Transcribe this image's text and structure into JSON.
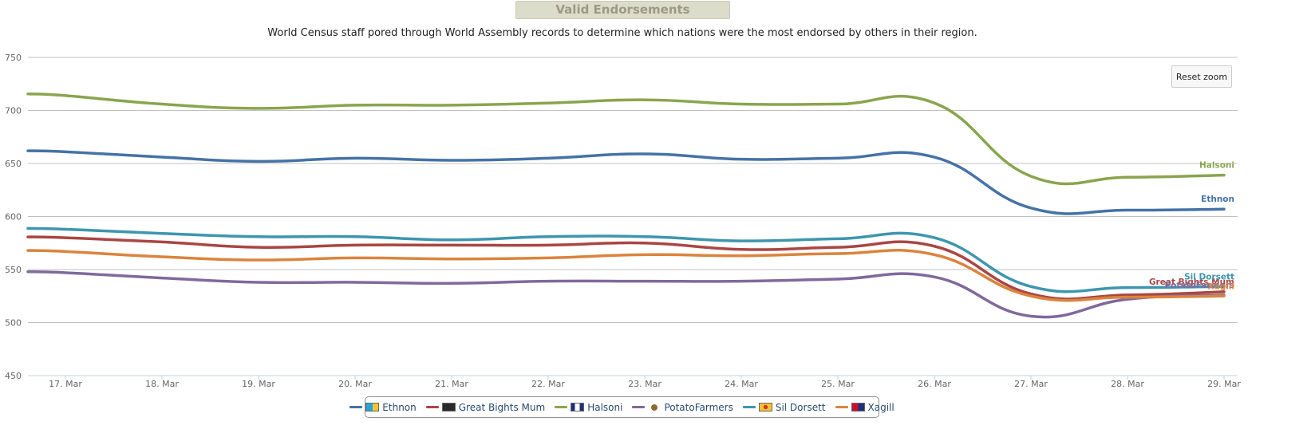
{
  "title": "Valid Endorsements",
  "subtitle": "World Census staff pored through World Assembly records to determine which nations were the most endorsed by others in their region.",
  "reset_zoom_label": "Reset zoom",
  "chart_data": {
    "type": "line",
    "categories": [
      "17. Mar",
      "18. Mar",
      "19. Mar",
      "20. Mar",
      "21. Mar",
      "22. Mar",
      "23. Mar",
      "24. Mar",
      "25. Mar",
      "26. Mar",
      "27. Mar",
      "28. Mar",
      "29. Mar"
    ],
    "y_ticks": [
      "450",
      "500",
      "550",
      "600",
      "650",
      "700",
      "750"
    ],
    "ylim": [
      450,
      750
    ],
    "grid": true,
    "legend_position": "bottom-center",
    "series": [
      {
        "name": "Ethnon",
        "color": "#4572a7",
        "flag_icon": "ethnon-flag-icon",
        "values": [
          661,
          656,
          652,
          655,
          653,
          655,
          659,
          654,
          655,
          656,
          608,
          606,
          607
        ]
      },
      {
        "name": "Great Bights Mum",
        "color": "#aa4643",
        "flag_icon": "great-bights-mum-flag-icon",
        "values": [
          580,
          576,
          571,
          573,
          573,
          573,
          575,
          569,
          571,
          572,
          527,
          526,
          529
        ]
      },
      {
        "name": "Halsoni",
        "color": "#89a54e",
        "flag_icon": "halsoni-flag-icon",
        "values": [
          714,
          706,
          702,
          705,
          705,
          707,
          710,
          706,
          706,
          707,
          638,
          637,
          639
        ]
      },
      {
        "name": "PotatoFarmers",
        "color": "#80699b",
        "flag_icon": "potatofarmers-flag-icon",
        "values": [
          547,
          542,
          538,
          538,
          537,
          539,
          539,
          539,
          541,
          543,
          506,
          522,
          526
        ]
      },
      {
        "name": "Sil Dorsett",
        "color": "#3d96ae",
        "flag_icon": "sil-dorsett-flag-icon",
        "values": [
          588,
          584,
          581,
          581,
          578,
          581,
          581,
          577,
          579,
          580,
          534,
          533,
          534
        ]
      },
      {
        "name": "Xagill",
        "color": "#db843d",
        "flag_icon": "xagill-flag-icon",
        "values": [
          567,
          562,
          559,
          561,
          560,
          561,
          564,
          563,
          565,
          564,
          525,
          524,
          525
        ]
      }
    ]
  }
}
